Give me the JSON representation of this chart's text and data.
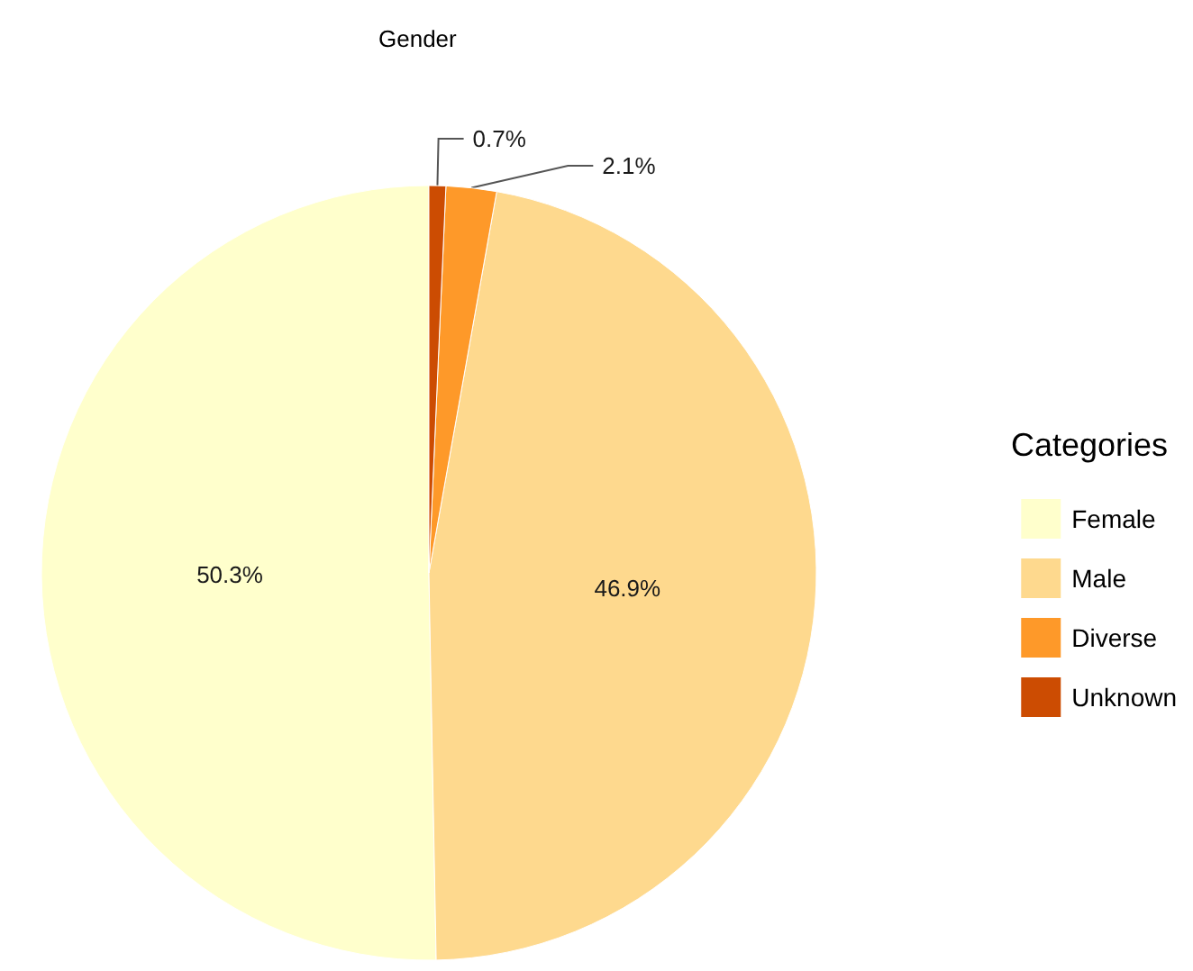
{
  "chart_data": {
    "type": "pie",
    "title": "Gender",
    "legend_title": "Categories",
    "legend": "right",
    "categories": [
      "Female",
      "Male",
      "Diverse",
      "Unknown"
    ],
    "values": [
      50.3,
      46.9,
      2.1,
      0.7
    ],
    "colors": [
      "#ffffcc",
      "#fed98e",
      "#fe9929",
      "#cc4c02"
    ],
    "value_labels": [
      "50.3%",
      "46.9%",
      "2.1%",
      "0.7%"
    ]
  }
}
